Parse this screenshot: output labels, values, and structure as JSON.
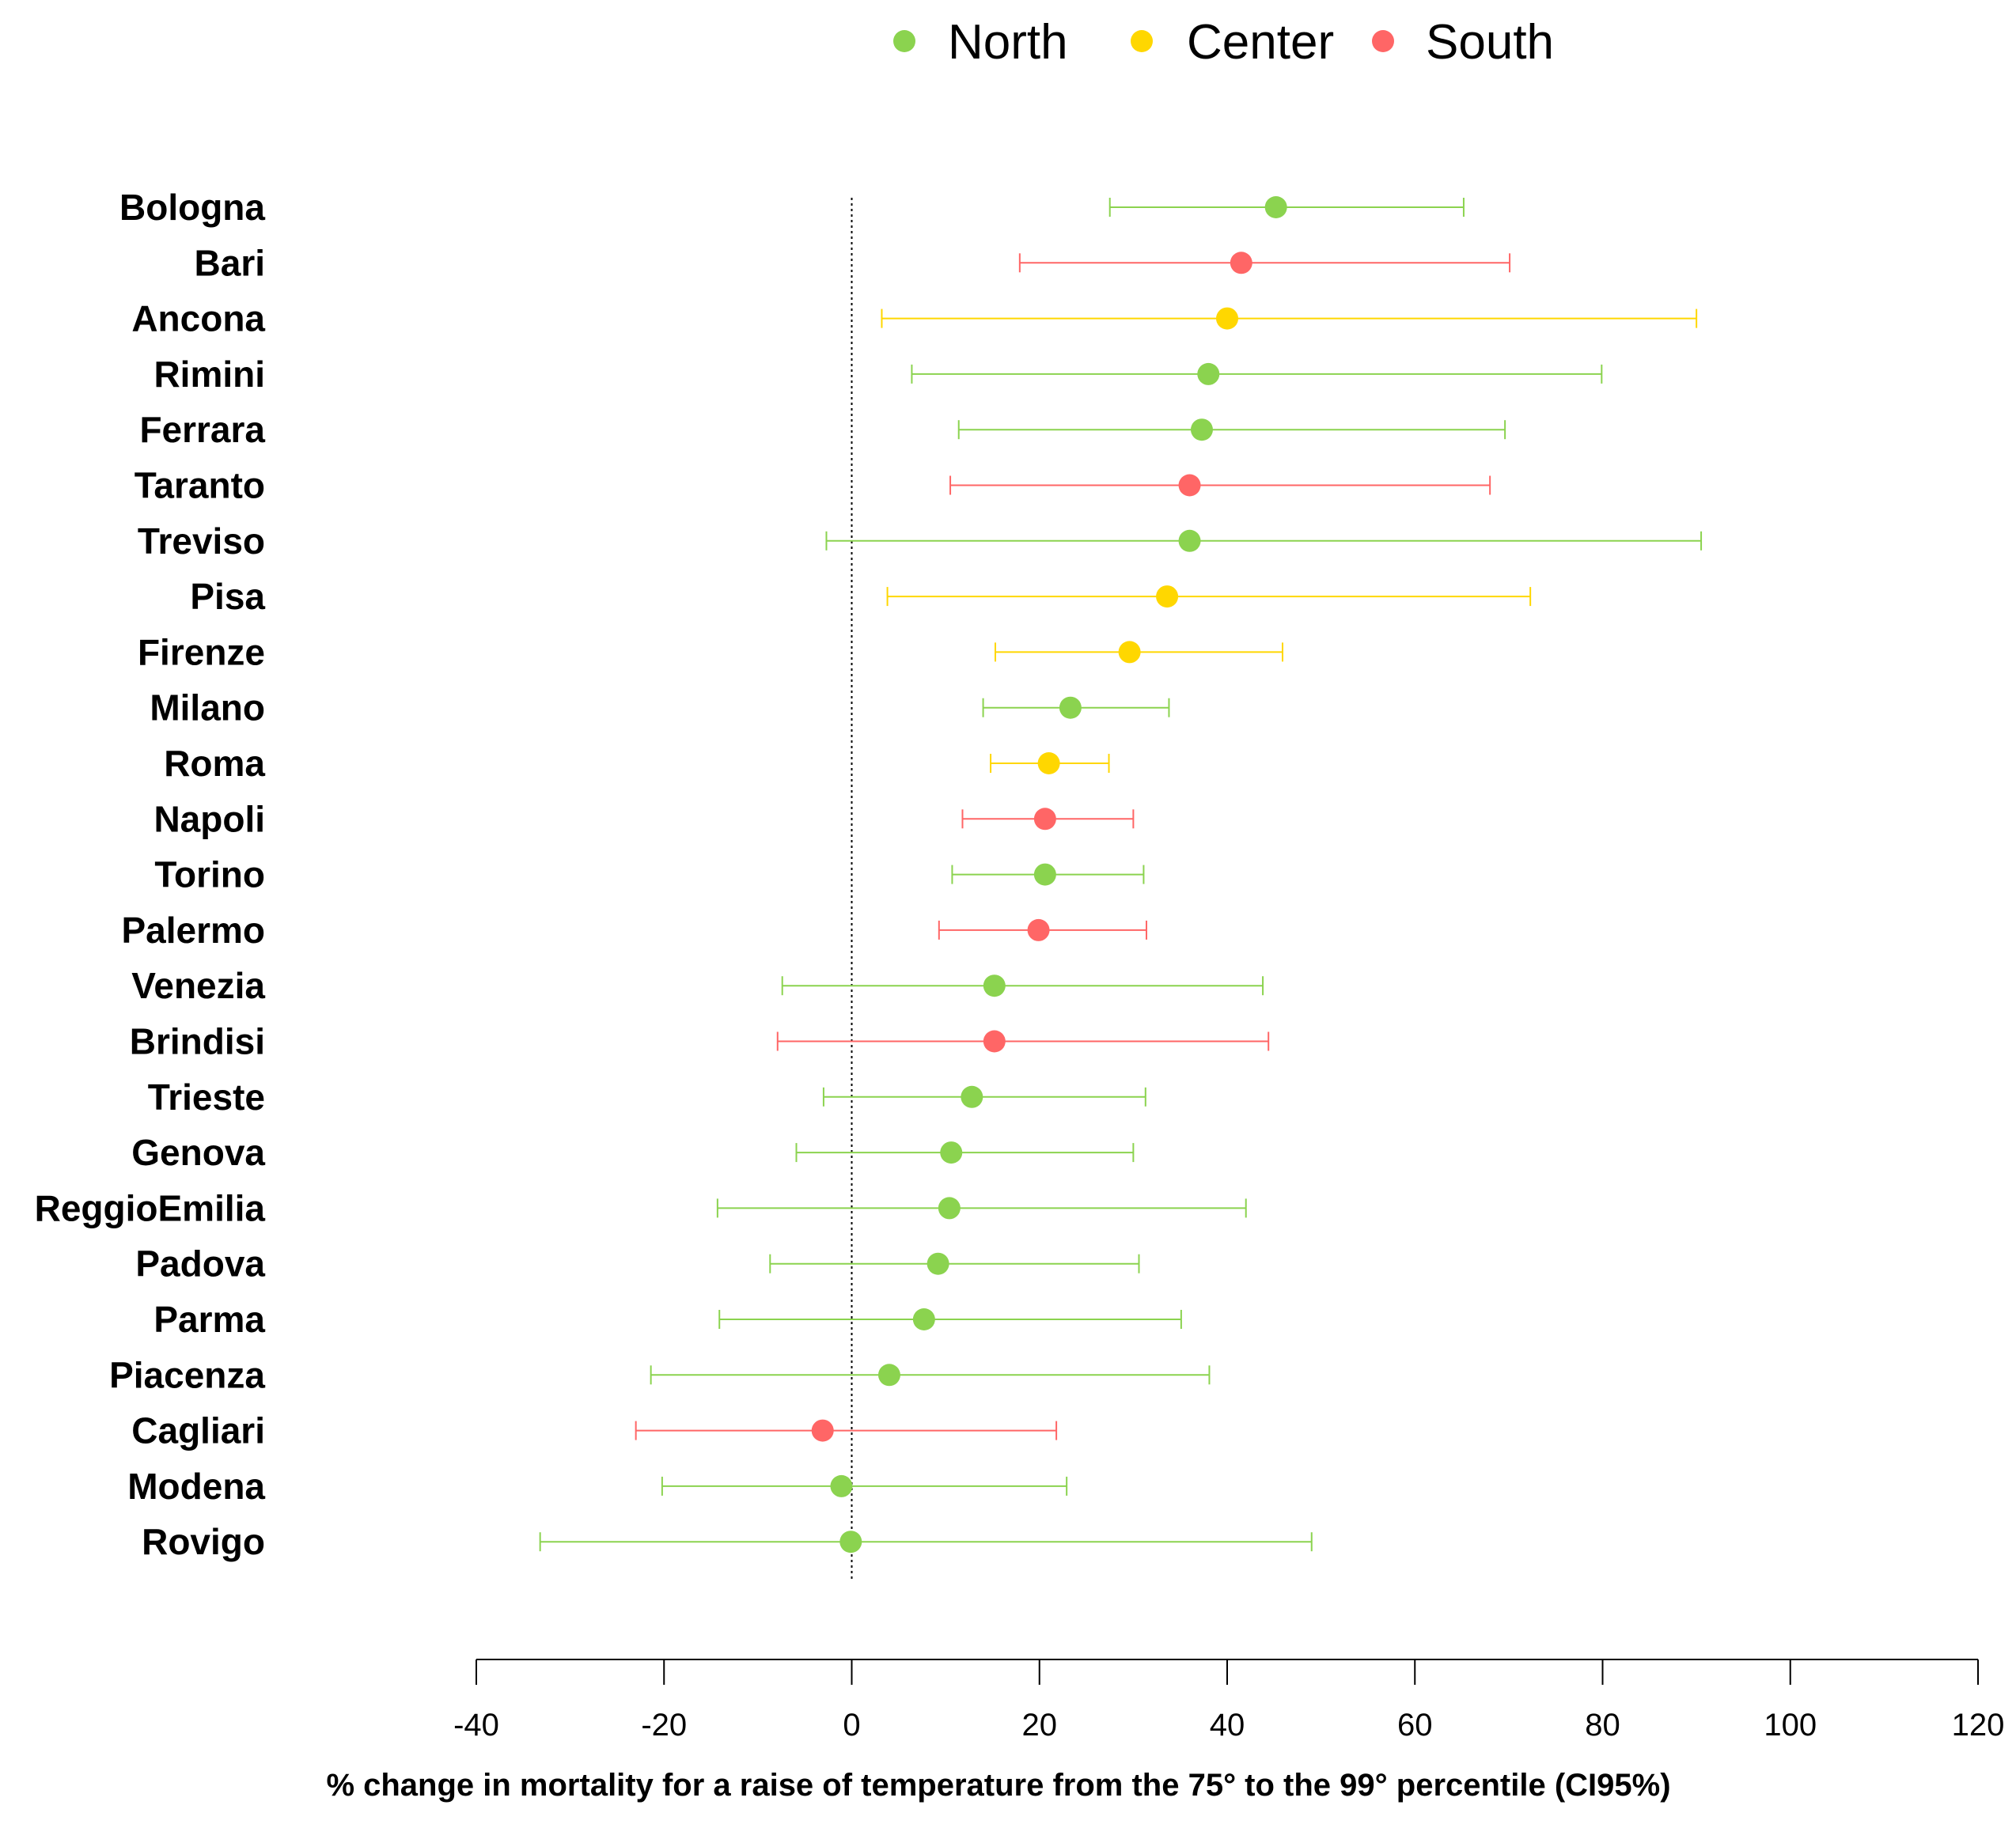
{
  "chart_data": {
    "type": "scatter",
    "subtype": "forest-plot-with-error-bars",
    "title": "",
    "xlabel": "% change in mortality for a raise of temperature from the 75° to the 99° percentile (CI95%)",
    "ylabel": "",
    "xlim": [
      -40,
      120
    ],
    "xticks": [
      -40,
      -20,
      0,
      20,
      40,
      60,
      80,
      100,
      120
    ],
    "reference_line": 0,
    "legend": {
      "placement": "top",
      "entries": [
        {
          "name": "North",
          "color": "#8BD34F"
        },
        {
          "name": "Center",
          "color": "#FFD700"
        },
        {
          "name": "South",
          "color": "#FF6666"
        }
      ]
    },
    "cities": [
      {
        "name": "Bologna",
        "region": "North",
        "est": 45.2,
        "lo": 27.5,
        "hi": 65.2
      },
      {
        "name": "Bari",
        "region": "South",
        "est": 41.5,
        "lo": 17.9,
        "hi": 70.1
      },
      {
        "name": "Ancona",
        "region": "Center",
        "est": 40.0,
        "lo": 3.2,
        "hi": 90.0
      },
      {
        "name": "Rimini",
        "region": "North",
        "est": 38.0,
        "lo": 6.4,
        "hi": 79.9
      },
      {
        "name": "Ferrara",
        "region": "North",
        "est": 37.3,
        "lo": 11.4,
        "hi": 69.6
      },
      {
        "name": "Taranto",
        "region": "South",
        "est": 36.0,
        "lo": 10.5,
        "hi": 68.0
      },
      {
        "name": "Treviso",
        "region": "North",
        "est": 36.0,
        "lo": -2.7,
        "hi": 90.5
      },
      {
        "name": "Pisa",
        "region": "Center",
        "est": 33.6,
        "lo": 3.8,
        "hi": 72.3
      },
      {
        "name": "Firenze",
        "region": "Center",
        "est": 29.6,
        "lo": 15.3,
        "hi": 45.9
      },
      {
        "name": "Milano",
        "region": "North",
        "est": 23.3,
        "lo": 14.0,
        "hi": 33.8
      },
      {
        "name": "Roma",
        "region": "Center",
        "est": 21.0,
        "lo": 14.8,
        "hi": 27.4
      },
      {
        "name": "Napoli",
        "region": "South",
        "est": 20.6,
        "lo": 11.8,
        "hi": 30.0
      },
      {
        "name": "Torino",
        "region": "North",
        "est": 20.6,
        "lo": 10.7,
        "hi": 31.1
      },
      {
        "name": "Palermo",
        "region": "South",
        "est": 19.9,
        "lo": 9.3,
        "hi": 31.4
      },
      {
        "name": "Venezia",
        "region": "North",
        "est": 15.2,
        "lo": -7.4,
        "hi": 43.8
      },
      {
        "name": "Brindisi",
        "region": "South",
        "est": 15.2,
        "lo": -7.9,
        "hi": 44.4
      },
      {
        "name": "Trieste",
        "region": "North",
        "est": 12.8,
        "lo": -3.0,
        "hi": 31.3
      },
      {
        "name": "Genova",
        "region": "North",
        "est": 10.6,
        "lo": -5.9,
        "hi": 30.0
      },
      {
        "name": "ReggioEmilia",
        "region": "North",
        "est": 10.4,
        "lo": -14.3,
        "hi": 42.0
      },
      {
        "name": "Padova",
        "region": "North",
        "est": 9.2,
        "lo": -8.7,
        "hi": 30.6
      },
      {
        "name": "Parma",
        "region": "North",
        "est": 7.7,
        "lo": -14.1,
        "hi": 35.1
      },
      {
        "name": "Piacenza",
        "region": "North",
        "est": 4.0,
        "lo": -21.4,
        "hi": 38.1
      },
      {
        "name": "Cagliari",
        "region": "South",
        "est": -3.1,
        "lo": -23.0,
        "hi": 21.8
      },
      {
        "name": "Modena",
        "region": "North",
        "est": -1.1,
        "lo": -20.2,
        "hi": 22.9
      },
      {
        "name": "Rovigo",
        "region": "North",
        "est": -0.1,
        "lo": -33.2,
        "hi": 49.0
      }
    ]
  }
}
